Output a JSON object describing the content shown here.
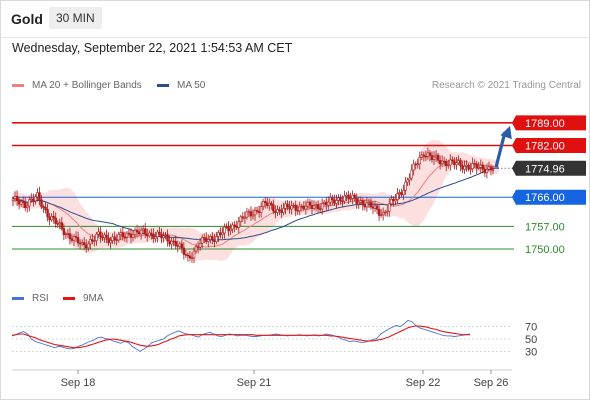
{
  "header": {
    "symbol": "Gold",
    "timeframe": "30 MIN"
  },
  "datetime": "Wednesday, September 22, 2021 1:54:53 AM CET",
  "credit": "Research © 2021 Trading Central",
  "legend": {
    "ma20": {
      "label": "MA 20 + Bollinger Bands",
      "color": "#f08080"
    },
    "ma50": {
      "label": "MA 50",
      "color": "#2c4f8c"
    },
    "rsi": {
      "label": "RSI",
      "color": "#4a74d4"
    },
    "ma9": {
      "label": "9MA",
      "color": "#e01818"
    }
  },
  "chart_data": [
    {
      "type": "line",
      "subtype": "candlestick",
      "x_labels": [
        "Sep 18",
        "Sep 21",
        "Sep 22",
        "Sep 26"
      ],
      "ylim": [
        1739.8,
        1797.3
      ],
      "last_price": 1774.96,
      "levels": [
        {
          "value": 1789.0,
          "label": "1789.00",
          "role": "resistance",
          "color": "#e01010",
          "style": "box"
        },
        {
          "value": 1782.0,
          "label": "1782.00",
          "role": "resistance",
          "color": "#e01010",
          "style": "box"
        },
        {
          "value": 1774.96,
          "label": "1774.96",
          "role": "current",
          "color": "#333333",
          "style": "box"
        },
        {
          "value": 1766.0,
          "label": "1766.00",
          "role": "pivot",
          "color": "#1565e0",
          "style": "box"
        },
        {
          "value": 1757.0,
          "label": "1757.00",
          "role": "support",
          "color": "#2e8b2e",
          "style": "text"
        },
        {
          "value": 1750.0,
          "label": "1750.00",
          "role": "support",
          "color": "#2e8b2e",
          "style": "text"
        }
      ],
      "forecast_arrow": {
        "from": 1774.96,
        "to": 1789.0
      }
    },
    {
      "type": "line",
      "name": "RSI",
      "ylim": [
        0,
        100
      ],
      "ticks": [
        30,
        50,
        70
      ],
      "series": [
        {
          "name": "RSI",
          "color": "#4a74d4",
          "values": [
            55,
            57,
            60,
            62,
            58,
            50,
            46,
            44,
            42,
            40,
            38,
            36,
            38,
            37,
            35,
            34,
            35,
            38,
            40,
            43,
            46,
            48,
            52,
            53,
            51,
            50,
            47,
            45,
            43,
            46,
            44,
            38,
            34,
            30,
            34,
            38,
            44,
            46,
            48,
            50,
            55,
            58,
            61,
            63,
            60,
            58,
            57,
            55,
            53,
            57,
            59,
            61,
            58,
            55,
            54,
            56,
            58,
            57,
            55,
            56,
            56,
            55,
            54,
            54,
            55,
            56,
            56,
            57,
            58,
            57,
            56,
            55,
            56,
            56,
            57,
            56,
            55,
            56,
            57,
            55,
            56,
            58,
            57,
            55,
            53,
            50,
            48,
            46,
            47,
            46,
            44,
            45,
            47,
            49,
            51,
            58,
            62,
            66,
            69,
            72,
            70,
            74,
            80,
            78,
            72,
            68,
            66,
            64,
            62,
            60,
            58,
            56,
            55,
            55,
            54,
            55,
            56,
            57,
            58
          ]
        },
        {
          "name": "9MA",
          "color": "#e01818",
          "values": [
            56,
            57,
            58,
            58,
            56,
            54,
            52,
            49,
            47,
            45,
            43,
            41,
            40,
            39,
            38,
            37,
            36,
            36,
            37,
            38,
            40,
            42,
            44,
            46,
            48,
            49,
            50,
            49,
            48,
            47,
            46,
            44,
            42,
            40,
            39,
            38,
            39,
            40,
            42,
            45,
            47,
            50,
            52,
            55,
            56,
            57,
            57,
            57,
            57,
            57,
            57,
            57,
            57,
            57,
            57,
            57,
            57,
            57,
            57,
            57,
            57,
            57,
            57,
            56,
            56,
            56,
            56,
            56,
            56,
            56,
            56,
            56,
            56,
            56,
            56,
            56,
            56,
            56,
            56,
            56,
            56,
            56,
            55,
            55,
            54,
            53,
            52,
            51,
            50,
            49,
            48,
            47,
            47,
            47,
            48,
            49,
            51,
            53,
            56,
            59,
            62,
            65,
            68,
            70,
            71,
            71,
            70,
            69,
            67,
            66,
            64,
            62,
            61,
            60,
            59,
            58,
            57,
            57,
            57
          ]
        }
      ]
    }
  ]
}
